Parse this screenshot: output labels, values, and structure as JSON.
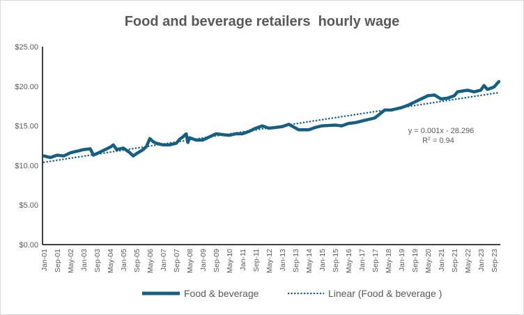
{
  "chart_data": {
    "type": "line",
    "title": "Food and beverage retailers  hourly wage",
    "xlabel": "",
    "ylabel": "",
    "ylim": [
      0,
      25
    ],
    "y_ticks": [
      "$0.00",
      "$5.00",
      "$10.00",
      "$15.00",
      "$20.00",
      "$25.00"
    ],
    "y_tick_values": [
      0,
      5,
      10,
      15,
      20,
      25
    ],
    "x_ticks": [
      "Jan-01",
      "Sep-01",
      "May-02",
      "Jan-03",
      "Sep-03",
      "May-04",
      "Jan-05",
      "Sep-05",
      "May-06",
      "Jan-07",
      "Sep-07",
      "May-08",
      "Jan-09",
      "Sep-09",
      "May-10",
      "Jan-11",
      "Sep-11",
      "May-12",
      "Jan-13",
      "Sep-13",
      "May-14",
      "Jan-15",
      "Sep-15",
      "May-16",
      "Jan-17",
      "Sep-17",
      "May-18",
      "Jan-19",
      "Sep-19",
      "May-20",
      "Jan-21",
      "Sep-21",
      "May-22",
      "Jan-23",
      "Sep-23"
    ],
    "grid": false,
    "legend_position": "bottom",
    "series": [
      {
        "name": "Food & beverage",
        "color": "#156082",
        "points_month_index_value": [
          [
            0,
            11.2
          ],
          [
            4,
            11.0
          ],
          [
            8,
            11.3
          ],
          [
            12,
            11.2
          ],
          [
            16,
            11.6
          ],
          [
            20,
            11.8
          ],
          [
            24,
            12.0
          ],
          [
            28,
            12.1
          ],
          [
            30,
            11.3
          ],
          [
            32,
            11.5
          ],
          [
            36,
            11.9
          ],
          [
            40,
            12.3
          ],
          [
            42,
            12.6
          ],
          [
            44,
            12.0
          ],
          [
            48,
            12.2
          ],
          [
            52,
            11.6
          ],
          [
            54,
            11.2
          ],
          [
            56,
            11.5
          ],
          [
            60,
            12.0
          ],
          [
            62,
            12.4
          ],
          [
            64,
            13.4
          ],
          [
            66,
            13.0
          ],
          [
            68,
            12.8
          ],
          [
            72,
            12.6
          ],
          [
            76,
            12.6
          ],
          [
            80,
            12.8
          ],
          [
            82,
            13.3
          ],
          [
            84,
            13.6
          ],
          [
            86,
            14.0
          ],
          [
            87,
            12.9
          ],
          [
            88,
            13.5
          ],
          [
            92,
            13.2
          ],
          [
            96,
            13.2
          ],
          [
            100,
            13.6
          ],
          [
            104,
            14.0
          ],
          [
            108,
            13.9
          ],
          [
            112,
            13.8
          ],
          [
            116,
            14.0
          ],
          [
            120,
            14.0
          ],
          [
            124,
            14.3
          ],
          [
            128,
            14.7
          ],
          [
            132,
            15.0
          ],
          [
            136,
            14.7
          ],
          [
            140,
            14.8
          ],
          [
            144,
            14.9
          ],
          [
            148,
            15.2
          ],
          [
            154,
            14.5
          ],
          [
            160,
            14.5
          ],
          [
            164,
            14.8
          ],
          [
            168,
            15.0
          ],
          [
            176,
            15.1
          ],
          [
            180,
            15.0
          ],
          [
            184,
            15.3
          ],
          [
            188,
            15.4
          ],
          [
            192,
            15.6
          ],
          [
            200,
            16.0
          ],
          [
            206,
            17.0
          ],
          [
            210,
            17.0
          ],
          [
            216,
            17.3
          ],
          [
            220,
            17.6
          ],
          [
            224,
            18.0
          ],
          [
            228,
            18.4
          ],
          [
            232,
            18.8
          ],
          [
            236,
            18.9
          ],
          [
            240,
            18.4
          ],
          [
            244,
            18.5
          ],
          [
            248,
            18.8
          ],
          [
            250,
            19.3
          ],
          [
            256,
            19.5
          ],
          [
            260,
            19.3
          ],
          [
            264,
            19.5
          ],
          [
            266,
            20.1
          ],
          [
            268,
            19.6
          ],
          [
            272,
            19.9
          ],
          [
            275,
            20.6
          ]
        ]
      }
    ],
    "trendline": {
      "name": "Linear (Food & beverage )",
      "color": "#156082",
      "start_value": 10.4,
      "end_value": 19.2,
      "equation": "y = 0.001x - 28.296",
      "r_squared_label": "R",
      "r_squared_sup": "2",
      "r_squared_value": " = 0.94"
    },
    "total_months": 276
  }
}
